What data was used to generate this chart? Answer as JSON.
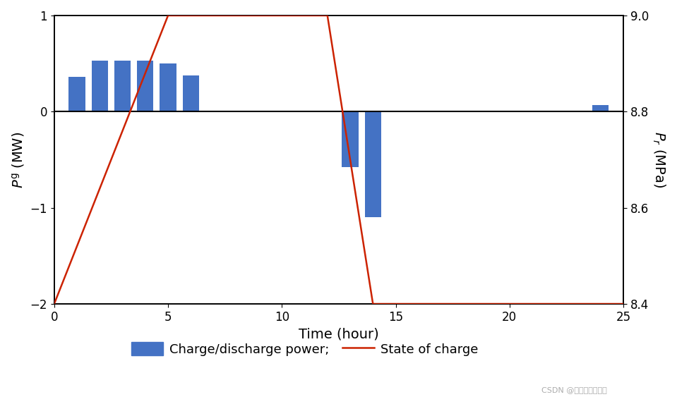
{
  "bar_hours": [
    1,
    2,
    3,
    4,
    5,
    6,
    13,
    14,
    24
  ],
  "bar_values": [
    0.36,
    0.53,
    0.53,
    0.53,
    0.5,
    0.38,
    -0.58,
    -1.1,
    0.07
  ],
  "bar_color": "#4472C4",
  "bar_width": 0.72,
  "line_x": [
    0,
    5,
    12,
    14,
    25
  ],
  "line_y_right": [
    8.4,
    9.0,
    9.0,
    8.4,
    8.4
  ],
  "line_color": "#CC2200",
  "line_width": 1.8,
  "xlim": [
    0,
    25
  ],
  "ylim_left": [
    -2,
    1
  ],
  "ylim_right": [
    8.4,
    9.0
  ],
  "yticks_left": [
    -2,
    -1,
    0,
    1
  ],
  "yticks_right": [
    8.4,
    8.6,
    8.8,
    9.0
  ],
  "xticks": [
    0,
    5,
    10,
    15,
    20,
    25
  ],
  "xlabel": "Time (hour)",
  "ylabel_left": "$P^\\mathrm{g}$ (MW)",
  "ylabel_right": "$P_r$ (MPa)",
  "legend_bar_label": "Charge/discharge power;",
  "legend_line_label": "State of charge",
  "bg_color": "#FFFFFF",
  "spine_color": "#000000",
  "tick_color": "#000000",
  "axis_label_color": "#000000",
  "zero_line_color": "#000000",
  "watermark": "CSDN @电气工程研习社"
}
